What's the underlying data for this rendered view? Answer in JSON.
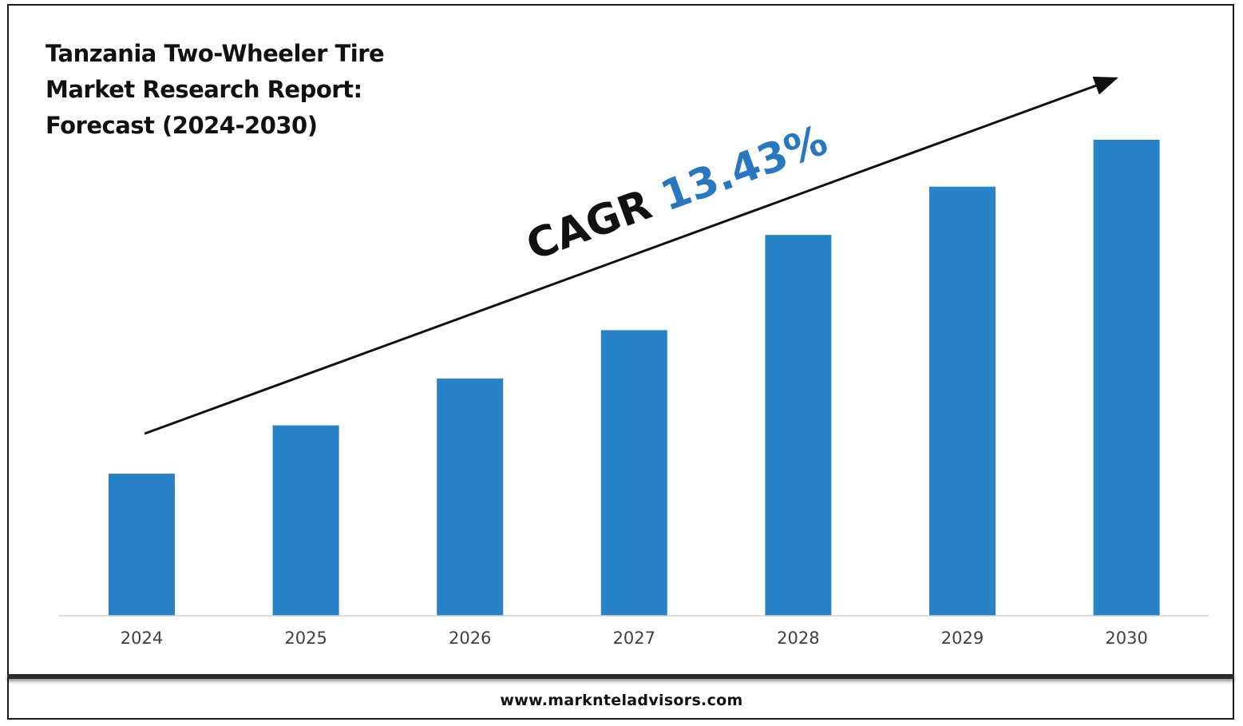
{
  "title_lines": [
    "Tanzania Two-Wheeler Tire",
    "Market Research Report:",
    "Forecast (2024-2030)"
  ],
  "cagr": {
    "label": "CAGR",
    "value": "13.43%"
  },
  "footer": {
    "url": "www.marknteladvisors.com"
  },
  "colors": {
    "bar": "#2882C8",
    "cagr_value": "#2778C0",
    "text": "#111111",
    "tick_label": "#404040",
    "axis": "#d0d0d0"
  },
  "chart_data": {
    "type": "bar",
    "categories": [
      "2024",
      "2025",
      "2026",
      "2027",
      "2028",
      "2029",
      "2030"
    ],
    "values": [
      1.0,
      1.34,
      1.67,
      2.01,
      2.68,
      3.02,
      3.35
    ],
    "ylim": [
      0,
      3.35
    ],
    "title": "Tanzania Two-Wheeler Tire Market Research Report: Forecast (2024-2030)",
    "xlabel": "",
    "ylabel": "",
    "grid": false,
    "legend": "none",
    "annotations": [
      "CAGR 13.43%"
    ]
  }
}
